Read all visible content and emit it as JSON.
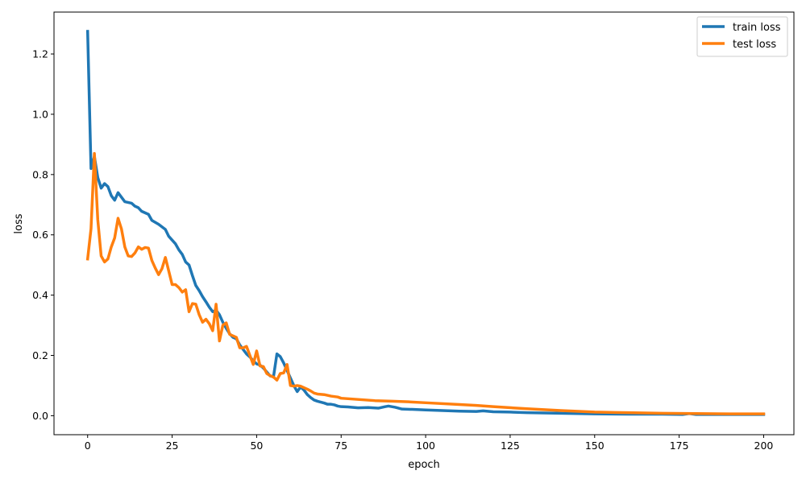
{
  "chart_data": {
    "type": "line",
    "xlabel": "epoch",
    "ylabel": "loss",
    "xlim": [
      -9.95,
      208.95
    ],
    "ylim": [
      -0.063,
      1.339
    ],
    "xticks": [
      0,
      25,
      50,
      75,
      100,
      125,
      150,
      175,
      200
    ],
    "yticks": [
      0.0,
      0.2,
      0.4,
      0.6,
      0.8,
      1.0,
      1.2
    ],
    "grid": false,
    "legend": {
      "placement": "top-right"
    },
    "series": [
      {
        "name": "train loss",
        "color": "#1f77b4",
        "points": [
          [
            0,
            1.275
          ],
          [
            1,
            0.82
          ],
          [
            2,
            0.86
          ],
          [
            3,
            0.79
          ],
          [
            4,
            0.755
          ],
          [
            5,
            0.77
          ],
          [
            6,
            0.76
          ],
          [
            7,
            0.73
          ],
          [
            8,
            0.715
          ],
          [
            9,
            0.74
          ],
          [
            10,
            0.725
          ],
          [
            11,
            0.71
          ],
          [
            13,
            0.705
          ],
          [
            14,
            0.695
          ],
          [
            15,
            0.69
          ],
          [
            16,
            0.678
          ],
          [
            18,
            0.668
          ],
          [
            19,
            0.648
          ],
          [
            21,
            0.635
          ],
          [
            23,
            0.618
          ],
          [
            24,
            0.595
          ],
          [
            26,
            0.57
          ],
          [
            27,
            0.55
          ],
          [
            28,
            0.535
          ],
          [
            29,
            0.51
          ],
          [
            30,
            0.5
          ],
          [
            31,
            0.465
          ],
          [
            32,
            0.432
          ],
          [
            33,
            0.415
          ],
          [
            34,
            0.395
          ],
          [
            35,
            0.378
          ],
          [
            36,
            0.36
          ],
          [
            37,
            0.345
          ],
          [
            38,
            0.35
          ],
          [
            39,
            0.335
          ],
          [
            40,
            0.31
          ],
          [
            41,
            0.29
          ],
          [
            42,
            0.272
          ],
          [
            43,
            0.26
          ],
          [
            44,
            0.255
          ],
          [
            45,
            0.235
          ],
          [
            46,
            0.22
          ],
          [
            47,
            0.205
          ],
          [
            48,
            0.195
          ],
          [
            49,
            0.182
          ],
          [
            50,
            0.172
          ],
          [
            51,
            0.168
          ],
          [
            52,
            0.158
          ],
          [
            53,
            0.145
          ],
          [
            54,
            0.132
          ],
          [
            55,
            0.13
          ],
          [
            56,
            0.205
          ],
          [
            57,
            0.196
          ],
          [
            58,
            0.175
          ],
          [
            59,
            0.15
          ],
          [
            60,
            0.125
          ],
          [
            61,
            0.1
          ],
          [
            62,
            0.08
          ],
          [
            63,
            0.095
          ],
          [
            64,
            0.085
          ],
          [
            65,
            0.07
          ],
          [
            66,
            0.06
          ],
          [
            67,
            0.052
          ],
          [
            68,
            0.048
          ],
          [
            69,
            0.045
          ],
          [
            70,
            0.042
          ],
          [
            71,
            0.038
          ],
          [
            72,
            0.038
          ],
          [
            73,
            0.036
          ],
          [
            74,
            0.032
          ],
          [
            75,
            0.03
          ],
          [
            77,
            0.029
          ],
          [
            80,
            0.026
          ],
          [
            83,
            0.027
          ],
          [
            86,
            0.025
          ],
          [
            88,
            0.03
          ],
          [
            89,
            0.032
          ],
          [
            91,
            0.028
          ],
          [
            93,
            0.022
          ],
          [
            96,
            0.021
          ],
          [
            100,
            0.019
          ],
          [
            105,
            0.017
          ],
          [
            110,
            0.015
          ],
          [
            115,
            0.014
          ],
          [
            117,
            0.016
          ],
          [
            120,
            0.013
          ],
          [
            125,
            0.012
          ],
          [
            130,
            0.01
          ],
          [
            140,
            0.008
          ],
          [
            150,
            0.006
          ],
          [
            160,
            0.005
          ],
          [
            170,
            0.005
          ],
          [
            176,
            0.004
          ],
          [
            178,
            0.007
          ],
          [
            180,
            0.004
          ],
          [
            190,
            0.004
          ],
          [
            200,
            0.004
          ]
        ]
      },
      {
        "name": "test loss",
        "color": "#ff7f0e",
        "points": [
          [
            0,
            0.52
          ],
          [
            1,
            0.62
          ],
          [
            2,
            0.87
          ],
          [
            3,
            0.65
          ],
          [
            4,
            0.53
          ],
          [
            5,
            0.51
          ],
          [
            6,
            0.52
          ],
          [
            7,
            0.56
          ],
          [
            8,
            0.59
          ],
          [
            9,
            0.655
          ],
          [
            10,
            0.62
          ],
          [
            11,
            0.56
          ],
          [
            12,
            0.53
          ],
          [
            13,
            0.528
          ],
          [
            14,
            0.54
          ],
          [
            15,
            0.56
          ],
          [
            16,
            0.552
          ],
          [
            17,
            0.558
          ],
          [
            18,
            0.556
          ],
          [
            19,
            0.515
          ],
          [
            20,
            0.49
          ],
          [
            21,
            0.468
          ],
          [
            22,
            0.488
          ],
          [
            23,
            0.525
          ],
          [
            24,
            0.48
          ],
          [
            25,
            0.435
          ],
          [
            26,
            0.435
          ],
          [
            27,
            0.425
          ],
          [
            28,
            0.41
          ],
          [
            29,
            0.418
          ],
          [
            30,
            0.345
          ],
          [
            31,
            0.372
          ],
          [
            32,
            0.37
          ],
          [
            33,
            0.335
          ],
          [
            34,
            0.31
          ],
          [
            35,
            0.32
          ],
          [
            36,
            0.305
          ],
          [
            37,
            0.282
          ],
          [
            38,
            0.37
          ],
          [
            39,
            0.248
          ],
          [
            40,
            0.3
          ],
          [
            41,
            0.308
          ],
          [
            42,
            0.27
          ],
          [
            43,
            0.265
          ],
          [
            44,
            0.26
          ],
          [
            45,
            0.225
          ],
          [
            46,
            0.225
          ],
          [
            47,
            0.23
          ],
          [
            48,
            0.2
          ],
          [
            49,
            0.17
          ],
          [
            50,
            0.215
          ],
          [
            51,
            0.165
          ],
          [
            52,
            0.163
          ],
          [
            53,
            0.14
          ],
          [
            54,
            0.133
          ],
          [
            55,
            0.128
          ],
          [
            56,
            0.118
          ],
          [
            57,
            0.14
          ],
          [
            58,
            0.142
          ],
          [
            59,
            0.17
          ],
          [
            60,
            0.1
          ],
          [
            61,
            0.098
          ],
          [
            62,
            0.1
          ],
          [
            63,
            0.098
          ],
          [
            64,
            0.093
          ],
          [
            65,
            0.088
          ],
          [
            66,
            0.082
          ],
          [
            67,
            0.075
          ],
          [
            68,
            0.072
          ],
          [
            70,
            0.07
          ],
          [
            72,
            0.065
          ],
          [
            74,
            0.062
          ],
          [
            75,
            0.058
          ],
          [
            80,
            0.054
          ],
          [
            85,
            0.05
          ],
          [
            90,
            0.048
          ],
          [
            95,
            0.046
          ],
          [
            100,
            0.043
          ],
          [
            110,
            0.037
          ],
          [
            115,
            0.034
          ],
          [
            120,
            0.03
          ],
          [
            130,
            0.023
          ],
          [
            140,
            0.017
          ],
          [
            150,
            0.012
          ],
          [
            160,
            0.01
          ],
          [
            170,
            0.008
          ],
          [
            180,
            0.007
          ],
          [
            190,
            0.006
          ],
          [
            200,
            0.006
          ]
        ]
      }
    ]
  }
}
